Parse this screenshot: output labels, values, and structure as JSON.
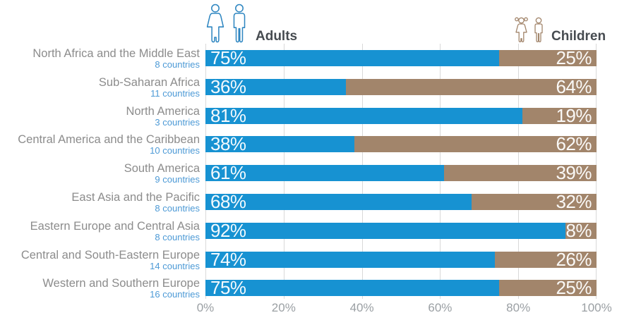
{
  "legend": {
    "adults_label": "Adults",
    "children_label": "Children"
  },
  "chart_data": {
    "type": "bar",
    "stacked": true,
    "orientation": "horizontal",
    "unit": "%",
    "title": "",
    "legend_position": "top",
    "grid": "vertical",
    "xlim": [
      0,
      100
    ],
    "x_ticks": [
      "0%",
      "20%",
      "40%",
      "60%",
      "80%",
      "100%"
    ],
    "categories": [
      "North Africa and the Middle East",
      "Sub-Saharan Africa",
      "North America",
      "Central America and the Caribbean",
      "South America",
      "East Asia and the Pacific",
      "Eastern Europe and Central Asia",
      "Central and South-Eastern Europe",
      "Western and Southern Europe"
    ],
    "series": [
      {
        "name": "Adults",
        "values": [
          75,
          36,
          81,
          38,
          61,
          68,
          92,
          74,
          75
        ]
      },
      {
        "name": "Children",
        "values": [
          25,
          64,
          19,
          62,
          39,
          32,
          8,
          26,
          25
        ]
      }
    ],
    "rows": [
      {
        "region": "North Africa and the Middle East",
        "countries": "8 countries",
        "adults": 75,
        "children": 25,
        "adults_label": "75%",
        "children_label": "25%"
      },
      {
        "region": "Sub-Saharan Africa",
        "countries": "11 countries",
        "adults": 36,
        "children": 64,
        "adults_label": "36%",
        "children_label": "64%"
      },
      {
        "region": "North America",
        "countries": "3 countries",
        "adults": 81,
        "children": 19,
        "adults_label": "81%",
        "children_label": "19%"
      },
      {
        "region": "Central America and the Caribbean",
        "countries": "10 countries",
        "adults": 38,
        "children": 62,
        "adults_label": "38%",
        "children_label": "62%"
      },
      {
        "region": "South America",
        "countries": "9 countries",
        "adults": 61,
        "children": 39,
        "adults_label": "61%",
        "children_label": "39%"
      },
      {
        "region": "East Asia and the Pacific",
        "countries": "8 countries",
        "adults": 68,
        "children": 32,
        "adults_label": "68%",
        "children_label": "32%"
      },
      {
        "region": "Eastern Europe and Central Asia",
        "countries": "8 countries",
        "adults": 92,
        "children": 8,
        "adults_label": "92%",
        "children_label": "8%"
      },
      {
        "region": "Central and South-Eastern Europe",
        "countries": "14 countries",
        "adults": 74,
        "children": 26,
        "adults_label": "74%",
        "children_label": "26%"
      },
      {
        "region": "Western and Southern Europe",
        "countries": "16 countries",
        "adults": 75,
        "children": 25,
        "adults_label": "75%",
        "children_label": "25%"
      }
    ],
    "colors": {
      "adults": "#1792d2",
      "children": "#a2856b",
      "adults_icon": "#2e86c1",
      "children_icon": "#a2856b",
      "grid": "#d9d9d9",
      "region_label": "#8c8c8c",
      "countries_label": "#4d9ad6",
      "axis_label": "#9ba0a4",
      "legend_text": "#464b50",
      "percent_text": "#ffffff"
    }
  }
}
